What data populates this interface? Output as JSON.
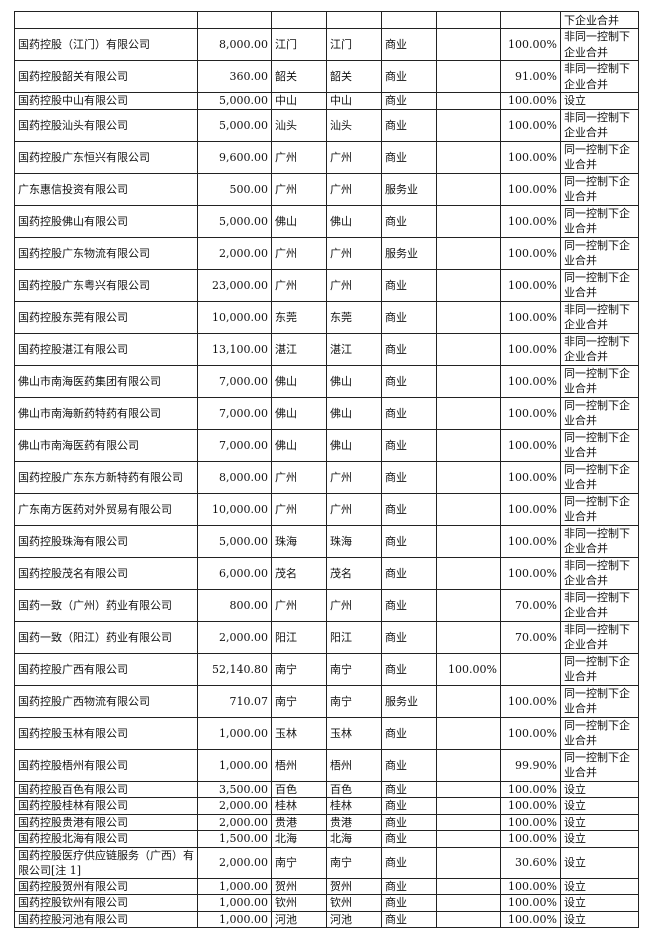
{
  "top_row": {
    "method": "下企业合并"
  },
  "rows": [
    {
      "name": "国药控股（江门）有限公司",
      "capital": "8,000.00",
      "location": "江门",
      "registered": "江门",
      "business": "商业",
      "direct": "",
      "indirect": "100.00%",
      "method": "非同一控制下企业合并",
      "h": 32
    },
    {
      "name": "国药控股韶关有限公司",
      "capital": "360.00",
      "location": "韶关",
      "registered": "韶关",
      "business": "商业",
      "direct": "",
      "indirect": "91.00%",
      "method": "非同一控制下企业合并",
      "h": 31
    },
    {
      "name": "国药控股中山有限公司",
      "capital": "5,000.00",
      "location": "中山",
      "registered": "中山",
      "business": "商业",
      "direct": "",
      "indirect": "100.00%",
      "method": "设立",
      "h": 15
    },
    {
      "name": "国药控股汕头有限公司",
      "capital": "5,000.00",
      "location": "汕头",
      "registered": "汕头",
      "business": "商业",
      "direct": "",
      "indirect": "100.00%",
      "method": "非同一控制下企业合并",
      "h": 32
    },
    {
      "name": "国药控股广东恒兴有限公司",
      "capital": "9,600.00",
      "location": "广州",
      "registered": "广州",
      "business": "商业",
      "direct": "",
      "indirect": "100.00%",
      "method": "同一控制下企业合并",
      "h": 32
    },
    {
      "name": "广东惠信投资有限公司",
      "capital": "500.00",
      "location": "广州",
      "registered": "广州",
      "business": "服务业",
      "direct": "",
      "indirect": "100.00%",
      "method": "同一控制下企业合并",
      "h": 31
    },
    {
      "name": "国药控股佛山有限公司",
      "capital": "5,000.00",
      "location": "佛山",
      "registered": "佛山",
      "business": "商业",
      "direct": "",
      "indirect": "100.00%",
      "method": "同一控制下企业合并",
      "h": 31
    },
    {
      "name": "国药控股广东物流有限公司",
      "capital": "2,000.00",
      "location": "广州",
      "registered": "广州",
      "business": "服务业",
      "direct": "",
      "indirect": "100.00%",
      "method": "同一控制下企业合并",
      "h": 32
    },
    {
      "name": "国药控股广东粤兴有限公司",
      "capital": "23,000.00",
      "location": "广州",
      "registered": "广州",
      "business": "商业",
      "direct": "",
      "indirect": "100.00%",
      "method": "同一控制下企业合并",
      "h": 32
    },
    {
      "name": "国药控股东莞有限公司",
      "capital": "10,000.00",
      "location": "东莞",
      "registered": "东莞",
      "business": "商业",
      "direct": "",
      "indirect": "100.00%",
      "method": "非同一控制下企业合并",
      "h": 31
    },
    {
      "name": "国药控股湛江有限公司",
      "capital": "13,100.00",
      "location": "湛江",
      "registered": "湛江",
      "business": "商业",
      "direct": "",
      "indirect": "100.00%",
      "method": "非同一控制下企业合并",
      "h": 32
    },
    {
      "name": "佛山市南海医药集团有限公司",
      "capital": "7,000.00",
      "location": "佛山",
      "registered": "佛山",
      "business": "商业",
      "direct": "",
      "indirect": "100.00%",
      "method": "同一控制下企业合并",
      "h": 31
    },
    {
      "name": "佛山市南海新药特药有限公司",
      "capital": "7,000.00",
      "location": "佛山",
      "registered": "佛山",
      "business": "商业",
      "direct": "",
      "indirect": "100.00%",
      "method": "同一控制下企业合并",
      "h": 32
    },
    {
      "name": "佛山市南海医药有限公司",
      "capital": "7,000.00",
      "location": "佛山",
      "registered": "佛山",
      "business": "商业",
      "direct": "",
      "indirect": "100.00%",
      "method": "同一控制下企业合并",
      "h": 31
    },
    {
      "name": "国药控股广东东方新特药有限公司",
      "capital": "8,000.00",
      "location": "广州",
      "registered": "广州",
      "business": "商业",
      "direct": "",
      "indirect": "100.00%",
      "method": "同一控制下企业合并",
      "h": 32
    },
    {
      "name": "广东南方医药对外贸易有限公司",
      "capital": "10,000.00",
      "location": "广州",
      "registered": "广州",
      "business": "商业",
      "direct": "",
      "indirect": "100.00%",
      "method": "同一控制下企业合并",
      "h": 31
    },
    {
      "name": "国药控股珠海有限公司",
      "capital": "5,000.00",
      "location": "珠海",
      "registered": "珠海",
      "business": "商业",
      "direct": "",
      "indirect": "100.00%",
      "method": "非同一控制下企业合并",
      "h": 32
    },
    {
      "name": "国药控股茂名有限公司",
      "capital": "6,000.00",
      "location": "茂名",
      "registered": "茂名",
      "business": "商业",
      "direct": "",
      "indirect": "100.00%",
      "method": "非同一控制下企业合并",
      "h": 31
    },
    {
      "name": "国药一致（广州）药业有限公司",
      "capital": "800.00",
      "location": "广州",
      "registered": "广州",
      "business": "商业",
      "direct": "",
      "indirect": "70.00%",
      "method": "非同一控制下企业合并",
      "h": 32
    },
    {
      "name": "国药一致（阳江）药业有限公司",
      "capital": "2,000.00",
      "location": "阳江",
      "registered": "阳江",
      "business": "商业",
      "direct": "",
      "indirect": "70.00%",
      "method": "非同一控制下企业合并",
      "h": 32
    },
    {
      "name": "国药控股广西有限公司",
      "capital": "52,140.80",
      "location": "南宁",
      "registered": "南宁",
      "business": "商业",
      "direct": "100.00%",
      "indirect": "",
      "method": "同一控制下企业合并",
      "h": 31
    },
    {
      "name": "国药控股广西物流有限公司",
      "capital": "710.07",
      "location": "南宁",
      "registered": "南宁",
      "business": "服务业",
      "direct": "",
      "indirect": "100.00%",
      "method": "同一控制下企业合并",
      "h": 32
    },
    {
      "name": "国药控股玉林有限公司",
      "capital": "1,000.00",
      "location": "玉林",
      "registered": "玉林",
      "business": "商业",
      "direct": "",
      "indirect": "100.00%",
      "method": "同一控制下企业合并",
      "h": 31
    },
    {
      "name": "国药控股梧州有限公司",
      "capital": "1,000.00",
      "location": "梧州",
      "registered": "梧州",
      "business": "商业",
      "direct": "",
      "indirect": "99.90%",
      "method": "同一控制下企业合并",
      "h": 32
    },
    {
      "name": "国药控股百色有限公司",
      "capital": "3,500.00",
      "location": "百色",
      "registered": "百色",
      "business": "商业",
      "direct": "",
      "indirect": "100.00%",
      "method": "设立",
      "h": 15
    },
    {
      "name": "国药控股桂林有限公司",
      "capital": "2,000.00",
      "location": "桂林",
      "registered": "桂林",
      "business": "商业",
      "direct": "",
      "indirect": "100.00%",
      "method": "设立",
      "h": 16
    },
    {
      "name": "国药控股贵港有限公司",
      "capital": "2,000.00",
      "location": "贵港",
      "registered": "贵港",
      "business": "商业",
      "direct": "",
      "indirect": "100.00%",
      "method": "设立",
      "h": 16
    },
    {
      "name": "国药控股北海有限公司",
      "capital": "1,500.00",
      "location": "北海",
      "registered": "北海",
      "business": "商业",
      "direct": "",
      "indirect": "100.00%",
      "method": "设立",
      "h": 16
    },
    {
      "name": "国药控股医疗供应链服务（广西）有限公司[注 1]",
      "capital": "2,000.00",
      "location": "南宁",
      "registered": "南宁",
      "business": "商业",
      "direct": "",
      "indirect": "30.60%",
      "method": "设立",
      "h": 31
    },
    {
      "name": "国药控股贺州有限公司",
      "capital": "1,000.00",
      "location": "贺州",
      "registered": "贺州",
      "business": "商业",
      "direct": "",
      "indirect": "100.00%",
      "method": "设立",
      "h": 16
    },
    {
      "name": "国药控股钦州有限公司",
      "capital": "1,000.00",
      "location": "钦州",
      "registered": "钦州",
      "business": "商业",
      "direct": "",
      "indirect": "100.00%",
      "method": "设立",
      "h": 16
    },
    {
      "name": "国药控股河池有限公司",
      "capital": "1,000.00",
      "location": "河池",
      "registered": "河池",
      "business": "商业",
      "direct": "",
      "indirect": "100.00%",
      "method": "设立",
      "h": 16
    }
  ]
}
